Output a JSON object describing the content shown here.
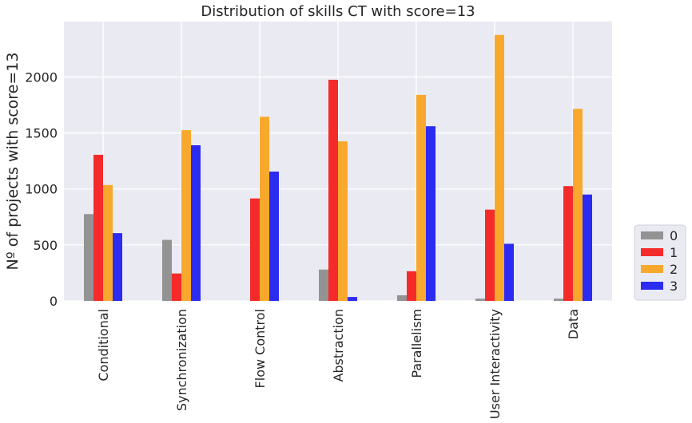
{
  "chart_data": {
    "type": "bar",
    "title": "Distribution of skills CT with score=13",
    "xlabel": "",
    "ylabel": "Nº of projects with score=13",
    "categories": [
      "Conditional",
      "Synchronization",
      "Flow Control",
      "Abstraction",
      "Parallelism",
      "User Interactivity",
      "Data"
    ],
    "series": [
      {
        "name": "0",
        "color": "#939393",
        "values": [
          775,
          545,
          0,
          280,
          50,
          20,
          20
        ]
      },
      {
        "name": "1",
        "color": "#f52b2b",
        "values": [
          1305,
          245,
          915,
          1975,
          265,
          815,
          1025
        ]
      },
      {
        "name": "2",
        "color": "#f8a92d",
        "values": [
          1035,
          1525,
          1645,
          1425,
          1840,
          2375,
          1715
        ]
      },
      {
        "name": "3",
        "color": "#2b2bf2",
        "values": [
          605,
          1390,
          1155,
          35,
          1560,
          510,
          950
        ]
      }
    ],
    "ylim": [
      0,
      2495
    ],
    "yticks": [
      0,
      500,
      1000,
      1500,
      2000
    ],
    "grid": true,
    "legend_position": "right",
    "background": "#eaeaf2"
  }
}
